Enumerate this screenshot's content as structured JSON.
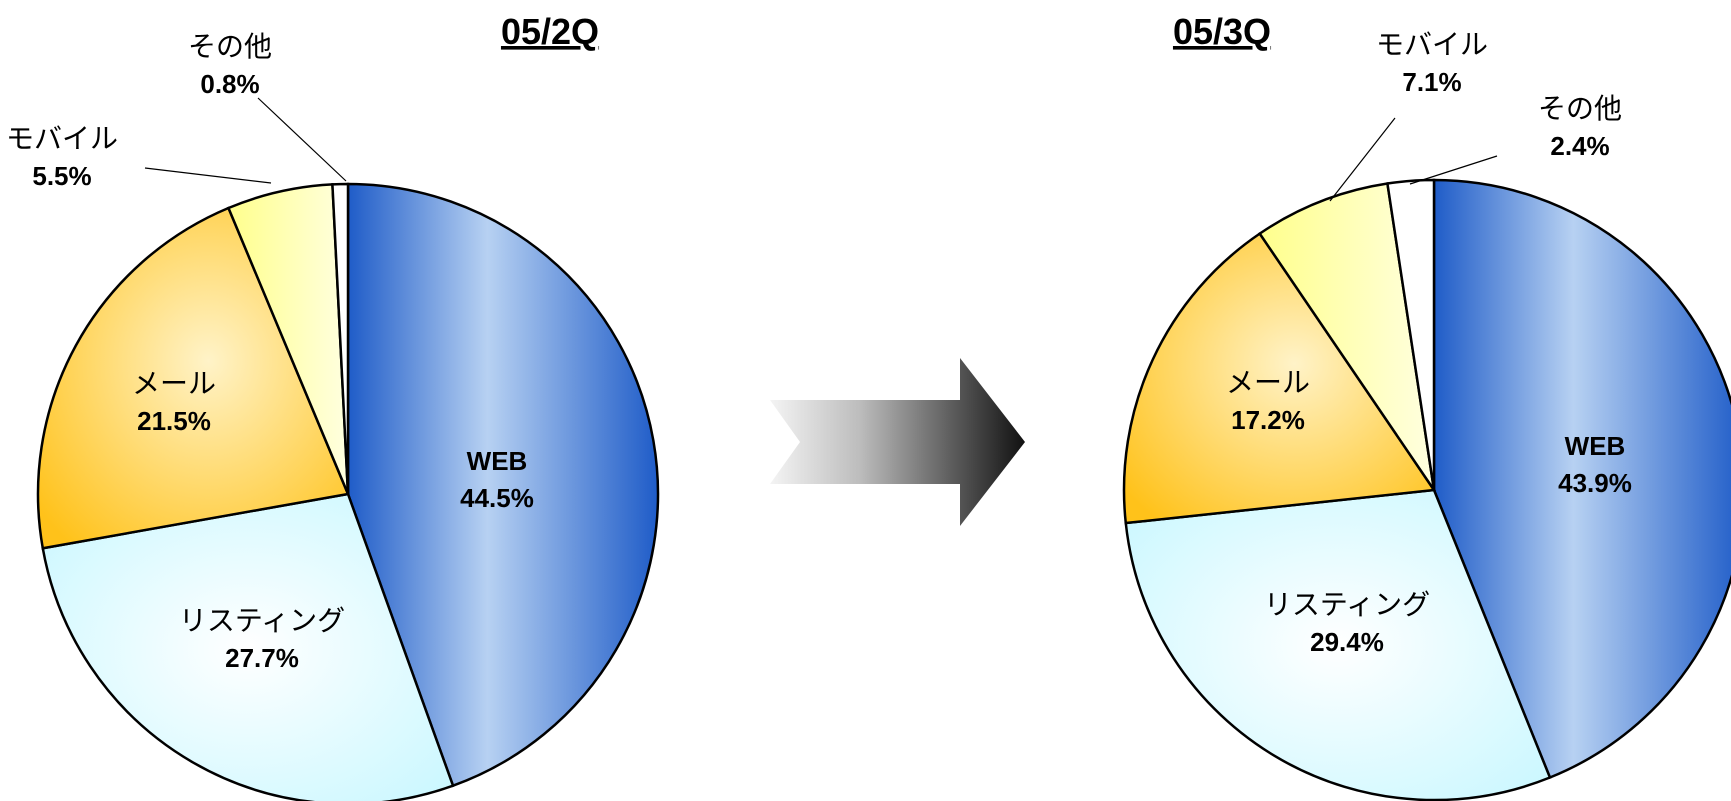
{
  "chart_data": [
    {
      "type": "pie",
      "title": "05/2Q",
      "slices": [
        {
          "name": "WEB",
          "value": 44.5,
          "label": "44.5%",
          "color": "#3a72d0"
        },
        {
          "name": "リスティング",
          "value": 27.7,
          "label": "27.7%",
          "color": "#d6fbff"
        },
        {
          "name": "メール",
          "value": 21.5,
          "label": "21.5%",
          "color": "#ffd44a"
        },
        {
          "name": "モバイル",
          "value": 5.5,
          "label": "5.5%",
          "color": "#ffff99"
        },
        {
          "name": "その他",
          "value": 0.8,
          "label": "0.8%",
          "color": "#ffffff"
        }
      ]
    },
    {
      "type": "pie",
      "title": "05/3Q",
      "slices": [
        {
          "name": "WEB",
          "value": 43.9,
          "label": "43.9%",
          "color": "#3a72d0"
        },
        {
          "name": "リスティング",
          "value": 29.4,
          "label": "29.4%",
          "color": "#d6fbff"
        },
        {
          "name": "メール",
          "value": 17.2,
          "label": "17.2%",
          "color": "#ffd44a"
        },
        {
          "name": "モバイル",
          "value": 7.1,
          "label": "7.1%",
          "color": "#ffff99"
        },
        {
          "name": "その他",
          "value": 2.4,
          "label": "2.4%",
          "color": "#ffffff"
        }
      ]
    }
  ]
}
